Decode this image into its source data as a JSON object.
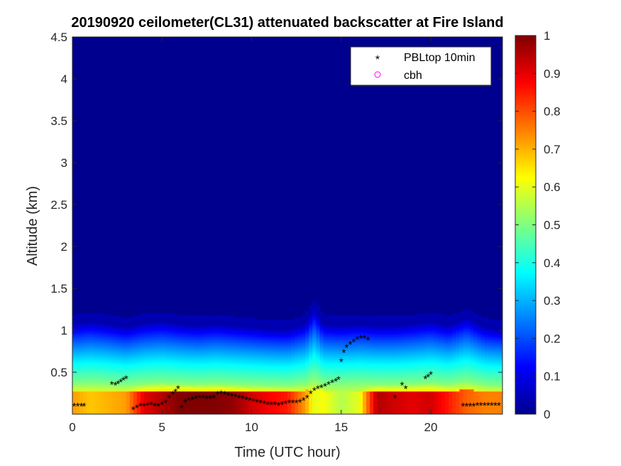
{
  "chart_data": {
    "type": "heatmap",
    "title": "20190920 ceilometer(CL31) attenuated backscatter at Fire Island",
    "xlabel": "Time (UTC hour)",
    "ylabel": "Altitude (km)",
    "xlim": [
      0,
      24
    ],
    "ylim": [
      0,
      4.5
    ],
    "xticks": [
      0,
      5,
      10,
      15,
      20
    ],
    "yticks": [
      0.5,
      1,
      1.5,
      2,
      2.5,
      3,
      3.5,
      4,
      4.5
    ],
    "colorbar": {
      "range": [
        0,
        1
      ],
      "ticks": [
        0,
        0.1,
        0.2,
        0.3,
        0.4,
        0.5,
        0.6,
        0.7,
        0.8,
        0.9,
        1
      ],
      "colormap": "jet"
    },
    "legend": {
      "placement": "top-right",
      "entries": [
        {
          "label": "PBLtop 10min",
          "marker": "asterisk",
          "color": "#000000"
        },
        {
          "label": "cbh",
          "marker": "circle",
          "color": "#ff00ff"
        }
      ]
    },
    "series": [
      {
        "name": "PBLtop 10min",
        "marker": "asterisk",
        "color": "#000000",
        "x": [
          0.1,
          0.3,
          0.5,
          0.65,
          2.2,
          2.4,
          2.55,
          2.7,
          2.85,
          3.0,
          3.4,
          3.6,
          3.8,
          4.0,
          4.2,
          4.4,
          4.6,
          4.8,
          5.0,
          5.2,
          5.4,
          5.6,
          5.75,
          5.9,
          6.1,
          6.3,
          6.5,
          6.7,
          6.9,
          7.1,
          7.3,
          7.5,
          7.7,
          7.9,
          8.1,
          8.3,
          8.5,
          8.7,
          8.9,
          9.1,
          9.3,
          9.5,
          9.7,
          9.9,
          10.1,
          10.3,
          10.5,
          10.7,
          10.9,
          11.1,
          11.3,
          11.5,
          11.7,
          11.9,
          12.1,
          12.3,
          12.5,
          12.7,
          12.9,
          13.1,
          13.3,
          13.5,
          13.7,
          13.9,
          14.1,
          14.3,
          14.5,
          14.7,
          14.85,
          15.0,
          15.15,
          15.3,
          15.5,
          15.7,
          15.9,
          16.1,
          16.3,
          16.5,
          18.0,
          18.4,
          18.6,
          19.7,
          19.85,
          20.0,
          21.8,
          22.0,
          22.2,
          22.4,
          22.6,
          22.8,
          23.0,
          23.2,
          23.4,
          23.6,
          23.8
        ],
        "y": [
          0.1,
          0.1,
          0.1,
          0.1,
          0.36,
          0.35,
          0.37,
          0.39,
          0.41,
          0.43,
          0.06,
          0.08,
          0.1,
          0.1,
          0.11,
          0.12,
          0.1,
          0.1,
          0.12,
          0.14,
          0.2,
          0.24,
          0.27,
          0.31,
          0.08,
          0.15,
          0.17,
          0.18,
          0.19,
          0.2,
          0.2,
          0.19,
          0.19,
          0.2,
          0.24,
          0.25,
          0.24,
          0.23,
          0.22,
          0.21,
          0.2,
          0.19,
          0.18,
          0.17,
          0.16,
          0.15,
          0.14,
          0.13,
          0.12,
          0.12,
          0.12,
          0.11,
          0.12,
          0.13,
          0.14,
          0.14,
          0.14,
          0.15,
          0.17,
          0.2,
          0.25,
          0.29,
          0.31,
          0.32,
          0.34,
          0.36,
          0.38,
          0.4,
          0.42,
          0.63,
          0.74,
          0.8,
          0.84,
          0.87,
          0.9,
          0.91,
          0.91,
          0.89,
          0.2,
          0.35,
          0.31,
          0.43,
          0.45,
          0.48,
          0.1,
          0.1,
          0.1,
          0.1,
          0.11,
          0.11,
          0.11,
          0.11,
          0.11,
          0.11,
          0.11
        ]
      },
      {
        "name": "cbh",
        "marker": "circle",
        "color": "#ff00ff",
        "x": [],
        "y": []
      }
    ],
    "boundary_layer_profile": {
      "x": [
        0,
        1,
        2,
        3,
        4,
        5,
        6,
        7,
        8,
        9,
        10,
        11,
        12,
        13,
        13.5,
        14,
        15,
        16,
        17,
        18,
        19,
        20,
        21,
        22,
        23,
        24
      ],
      "aerosol_top_km": [
        1.12,
        1.15,
        1.12,
        1.08,
        1.13,
        1.15,
        1.12,
        1.1,
        1.12,
        1.1,
        1.08,
        1.06,
        1.05,
        1.12,
        1.3,
        1.12,
        1.1,
        1.12,
        1.1,
        1.1,
        1.12,
        1.15,
        1.1,
        1.2,
        1.08,
        1.05
      ],
      "peak_intensity": [
        0.72,
        0.68,
        0.7,
        0.72,
        0.9,
        0.95,
        1.0,
        1.0,
        1.0,
        0.98,
        0.92,
        0.88,
        0.85,
        0.72,
        0.6,
        0.62,
        0.55,
        0.6,
        0.95,
        0.92,
        0.9,
        0.92,
        0.85,
        0.78,
        0.75,
        0.75
      ]
    }
  }
}
